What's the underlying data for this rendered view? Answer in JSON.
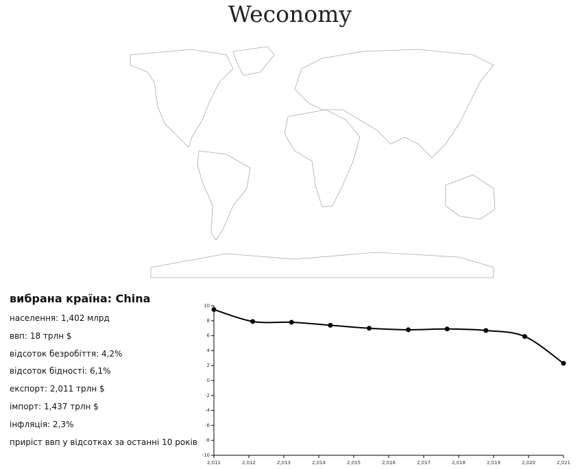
{
  "header": {
    "title": "Weconomy"
  },
  "info": {
    "selected": "вибрана країна: China",
    "lines": [
      "населення: 1,402 млрд",
      "ввп: 18 трлн $",
      "відсоток безробіття: 4,2%",
      "відсоток бідності: 6,1%",
      "експорт: 2,011 трлн $",
      "імпорт: 1,437 трлн $",
      "інфляція: 2,3%",
      "приріст ввп у відсотках за останні 10 років"
    ]
  },
  "chart_data": {
    "type": "line",
    "x": [
      2011,
      2012.11,
      2013.22,
      2014.33,
      2015.44,
      2016.56,
      2017.67,
      2018.78,
      2019.89,
      2021
    ],
    "values": [
      9.5,
      7.9,
      7.8,
      7.4,
      7.0,
      6.8,
      6.9,
      6.7,
      5.9,
      2.3
    ],
    "color": "#000000",
    "xlim": [
      2011,
      2021
    ],
    "xticks": [
      {
        "value": 2011,
        "label": "2,011"
      },
      {
        "value": 2012,
        "label": "2,012"
      },
      {
        "value": 2013,
        "label": "2,013"
      },
      {
        "value": 2014,
        "label": "2,014"
      },
      {
        "value": 2015,
        "label": "2,015"
      },
      {
        "value": 2016,
        "label": "2,016"
      },
      {
        "value": 2017,
        "label": "2,017"
      },
      {
        "value": 2018,
        "label": "2,018"
      },
      {
        "value": 2019,
        "label": "2,019"
      },
      {
        "value": 2020,
        "label": "2,020"
      },
      {
        "value": 2021,
        "label": "2,021"
      }
    ],
    "ylim": [
      -10,
      10
    ],
    "yticks": [
      -10,
      -8,
      -6,
      -4,
      -2,
      0,
      2,
      4,
      6,
      8,
      10
    ]
  }
}
